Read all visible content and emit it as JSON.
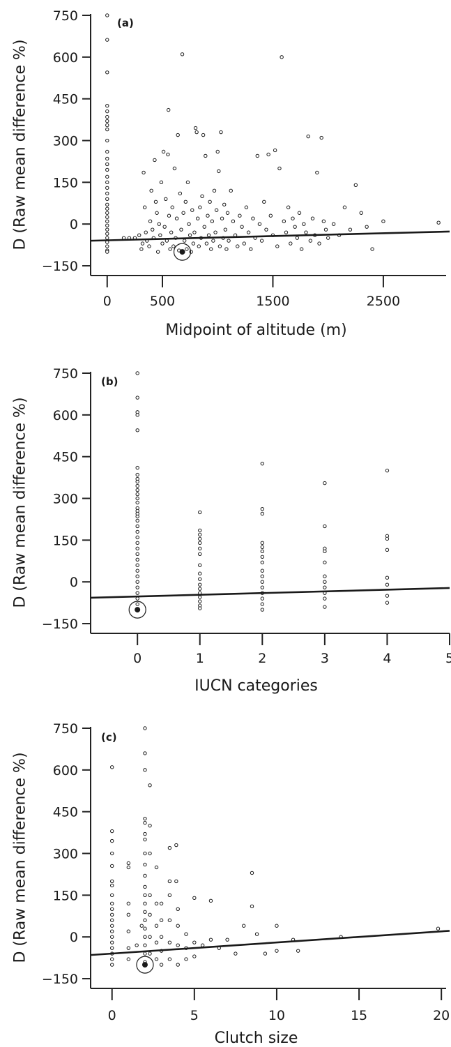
{
  "chart_data": [
    {
      "type": "scatter",
      "panel_label": "(a)",
      "xlabel": "Midpoint of altitude (m)",
      "ylabel": "D (Raw mean difference %)",
      "xlim": [
        -150,
        3100
      ],
      "ylim": [
        -185,
        755
      ],
      "xticks": [
        0,
        500,
        1500,
        2500
      ],
      "yticks": [
        -150,
        0,
        150,
        300,
        450,
        600,
        750
      ],
      "fit_line": {
        "x": [
          -150,
          3100
        ],
        "y": [
          -60,
          -27
        ]
      },
      "highlight": {
        "x": 680,
        "y": -100
      },
      "points": [
        [
          0,
          750
        ],
        [
          0,
          662
        ],
        [
          0,
          545
        ],
        [
          0,
          425
        ],
        [
          0,
          405
        ],
        [
          0,
          385
        ],
        [
          0,
          370
        ],
        [
          0,
          355
        ],
        [
          0,
          340
        ],
        [
          0,
          300
        ],
        [
          0,
          260
        ],
        [
          0,
          235
        ],
        [
          0,
          215
        ],
        [
          0,
          195
        ],
        [
          0,
          170
        ],
        [
          0,
          150
        ],
        [
          0,
          130
        ],
        [
          0,
          110
        ],
        [
          0,
          90
        ],
        [
          0,
          70
        ],
        [
          0,
          55
        ],
        [
          0,
          40
        ],
        [
          0,
          25
        ],
        [
          0,
          10
        ],
        [
          0,
          -5
        ],
        [
          0,
          -20
        ],
        [
          0,
          -35
        ],
        [
          0,
          -50
        ],
        [
          0,
          -65
        ],
        [
          0,
          -80
        ],
        [
          0,
          -95
        ],
        [
          0,
          -100
        ],
        [
          150,
          -50
        ],
        [
          200,
          -50
        ],
        [
          250,
          -50
        ],
        [
          290,
          -40
        ],
        [
          310,
          -90
        ],
        [
          320,
          -70
        ],
        [
          330,
          185
        ],
        [
          340,
          60
        ],
        [
          350,
          -30
        ],
        [
          360,
          -60
        ],
        [
          380,
          -80
        ],
        [
          390,
          10
        ],
        [
          400,
          120
        ],
        [
          410,
          -20
        ],
        [
          420,
          -50
        ],
        [
          430,
          230
        ],
        [
          440,
          80
        ],
        [
          450,
          40
        ],
        [
          460,
          -100
        ],
        [
          470,
          0
        ],
        [
          480,
          -40
        ],
        [
          490,
          150
        ],
        [
          500,
          -70
        ],
        [
          510,
          260
        ],
        [
          520,
          -10
        ],
        [
          530,
          90
        ],
        [
          540,
          -60
        ],
        [
          550,
          250
        ],
        [
          555,
          410
        ],
        [
          560,
          30
        ],
        [
          570,
          -90
        ],
        [
          580,
          -30
        ],
        [
          590,
          60
        ],
        [
          600,
          -80
        ],
        [
          610,
          200
        ],
        [
          620,
          -50
        ],
        [
          630,
          20
        ],
        [
          640,
          320
        ],
        [
          650,
          -95
        ],
        [
          660,
          110
        ],
        [
          670,
          -20
        ],
        [
          680,
          610
        ],
        [
          690,
          40
        ],
        [
          700,
          -60
        ],
        [
          710,
          80
        ],
        [
          720,
          -90
        ],
        [
          730,
          150
        ],
        [
          740,
          0
        ],
        [
          750,
          -40
        ],
        [
          760,
          -100
        ],
        [
          770,
          50
        ],
        [
          780,
          -70
        ],
        [
          790,
          -30
        ],
        [
          800,
          345
        ],
        [
          810,
          330
        ],
        [
          820,
          20
        ],
        [
          830,
          -80
        ],
        [
          840,
          60
        ],
        [
          850,
          -50
        ],
        [
          860,
          100
        ],
        [
          870,
          320
        ],
        [
          880,
          -10
        ],
        [
          890,
          245
        ],
        [
          900,
          -70
        ],
        [
          910,
          30
        ],
        [
          920,
          -40
        ],
        [
          930,
          80
        ],
        [
          940,
          -90
        ],
        [
          950,
          10
        ],
        [
          960,
          -60
        ],
        [
          970,
          120
        ],
        [
          980,
          -30
        ],
        [
          990,
          50
        ],
        [
          1000,
          260
        ],
        [
          1010,
          190
        ],
        [
          1020,
          -80
        ],
        [
          1030,
          330
        ],
        [
          1040,
          20
        ],
        [
          1050,
          -50
        ],
        [
          1060,
          70
        ],
        [
          1070,
          -20
        ],
        [
          1080,
          -90
        ],
        [
          1090,
          40
        ],
        [
          1100,
          -60
        ],
        [
          1120,
          120
        ],
        [
          1140,
          10
        ],
        [
          1160,
          -40
        ],
        [
          1180,
          -80
        ],
        [
          1200,
          30
        ],
        [
          1220,
          -10
        ],
        [
          1240,
          -70
        ],
        [
          1260,
          60
        ],
        [
          1280,
          -30
        ],
        [
          1300,
          -90
        ],
        [
          1320,
          20
        ],
        [
          1340,
          -50
        ],
        [
          1360,
          245
        ],
        [
          1380,
          0
        ],
        [
          1400,
          -60
        ],
        [
          1420,
          80
        ],
        [
          1440,
          -20
        ],
        [
          1460,
          250
        ],
        [
          1480,
          30
        ],
        [
          1500,
          -40
        ],
        [
          1520,
          265
        ],
        [
          1540,
          -80
        ],
        [
          1560,
          200
        ],
        [
          1580,
          600
        ],
        [
          1600,
          10
        ],
        [
          1620,
          -30
        ],
        [
          1640,
          60
        ],
        [
          1660,
          -70
        ],
        [
          1680,
          20
        ],
        [
          1700,
          -10
        ],
        [
          1720,
          -50
        ],
        [
          1740,
          40
        ],
        [
          1760,
          -90
        ],
        [
          1780,
          0
        ],
        [
          1800,
          -30
        ],
        [
          1820,
          315
        ],
        [
          1840,
          -60
        ],
        [
          1860,
          20
        ],
        [
          1880,
          -40
        ],
        [
          1900,
          185
        ],
        [
          1920,
          -70
        ],
        [
          1940,
          310
        ],
        [
          1960,
          10
        ],
        [
          1980,
          -20
        ],
        [
          2000,
          -50
        ],
        [
          2050,
          0
        ],
        [
          2100,
          -40
        ],
        [
          2150,
          60
        ],
        [
          2200,
          -20
        ],
        [
          2250,
          140
        ],
        [
          2300,
          40
        ],
        [
          2350,
          -10
        ],
        [
          2400,
          -90
        ],
        [
          2500,
          10
        ],
        [
          3000,
          5
        ]
      ]
    },
    {
      "type": "scatter",
      "panel_label": "(b)",
      "xlabel": "IUCN categories",
      "ylabel": "D (Raw mean difference %)",
      "xlim": [
        -0.75,
        5
      ],
      "ylim": [
        -185,
        755
      ],
      "xticks": [
        0,
        1,
        2,
        3,
        4,
        5
      ],
      "yticks": [
        -150,
        0,
        150,
        300,
        450,
        600,
        750
      ],
      "fit_line": {
        "x": [
          -0.75,
          5
        ],
        "y": [
          -57,
          -22
        ]
      },
      "highlight": {
        "x": 0,
        "y": -100
      },
      "points": [
        [
          0,
          750
        ],
        [
          0,
          662
        ],
        [
          0,
          610
        ],
        [
          0,
          600
        ],
        [
          0,
          545
        ],
        [
          0,
          410
        ],
        [
          0,
          385
        ],
        [
          0,
          370
        ],
        [
          0,
          360
        ],
        [
          0,
          345
        ],
        [
          0,
          330
        ],
        [
          0,
          315
        ],
        [
          0,
          300
        ],
        [
          0,
          285
        ],
        [
          0,
          265
        ],
        [
          0,
          255
        ],
        [
          0,
          245
        ],
        [
          0,
          235
        ],
        [
          0,
          220
        ],
        [
          0,
          200
        ],
        [
          0,
          180
        ],
        [
          0,
          160
        ],
        [
          0,
          140
        ],
        [
          0,
          120
        ],
        [
          0,
          100
        ],
        [
          0,
          80
        ],
        [
          0,
          60
        ],
        [
          0,
          40
        ],
        [
          0,
          20
        ],
        [
          0,
          0
        ],
        [
          0,
          -20
        ],
        [
          0,
          -40
        ],
        [
          0,
          -60
        ],
        [
          0,
          -80
        ],
        [
          0,
          -100
        ],
        [
          1,
          250
        ],
        [
          1,
          185
        ],
        [
          1,
          170
        ],
        [
          1,
          155
        ],
        [
          1,
          140
        ],
        [
          1,
          120
        ],
        [
          1,
          100
        ],
        [
          1,
          60
        ],
        [
          1,
          30
        ],
        [
          1,
          10
        ],
        [
          1,
          -10
        ],
        [
          1,
          -25
        ],
        [
          1,
          -40
        ],
        [
          1,
          -55
        ],
        [
          1,
          -70
        ],
        [
          1,
          -85
        ],
        [
          1,
          -95
        ],
        [
          2,
          425
        ],
        [
          2,
          262
        ],
        [
          2,
          245
        ],
        [
          2,
          140
        ],
        [
          2,
          125
        ],
        [
          2,
          110
        ],
        [
          2,
          90
        ],
        [
          2,
          70
        ],
        [
          2,
          40
        ],
        [
          2,
          20
        ],
        [
          2,
          0
        ],
        [
          2,
          -20
        ],
        [
          2,
          -40
        ],
        [
          2,
          -60
        ],
        [
          2,
          -80
        ],
        [
          2,
          -100
        ],
        [
          3,
          355
        ],
        [
          3,
          200
        ],
        [
          3,
          120
        ],
        [
          3,
          110
        ],
        [
          3,
          70
        ],
        [
          3,
          20
        ],
        [
          3,
          0
        ],
        [
          3,
          -20
        ],
        [
          3,
          -40
        ],
        [
          3,
          -60
        ],
        [
          3,
          -90
        ],
        [
          4,
          400
        ],
        [
          4,
          165
        ],
        [
          4,
          155
        ],
        [
          4,
          115
        ],
        [
          4,
          15
        ],
        [
          4,
          -10
        ],
        [
          4,
          -50
        ],
        [
          4,
          -75
        ]
      ]
    },
    {
      "type": "scatter",
      "panel_label": "(c)",
      "xlabel": "Clutch size",
      "ylabel": "D (Raw mean difference %)",
      "xlim": [
        -1.3,
        20.5
      ],
      "ylim": [
        -185,
        755
      ],
      "xticks": [
        0,
        5,
        10,
        15,
        20
      ],
      "yticks": [
        -150,
        0,
        150,
        300,
        450,
        600,
        750
      ],
      "fit_line": {
        "x": [
          -1.3,
          20.5
        ],
        "y": [
          -65,
          22
        ]
      },
      "highlight": {
        "x": 2,
        "y": -100
      },
      "points": [
        [
          0,
          610
        ],
        [
          0,
          380
        ],
        [
          0,
          345
        ],
        [
          0,
          300
        ],
        [
          0,
          255
        ],
        [
          0,
          200
        ],
        [
          0,
          185
        ],
        [
          0,
          150
        ],
        [
          0,
          120
        ],
        [
          0,
          100
        ],
        [
          0,
          80
        ],
        [
          0,
          60
        ],
        [
          0,
          40
        ],
        [
          0,
          20
        ],
        [
          0,
          0
        ],
        [
          0,
          -20
        ],
        [
          0,
          -40
        ],
        [
          0,
          -60
        ],
        [
          0,
          -80
        ],
        [
          0,
          -100
        ],
        [
          1,
          265
        ],
        [
          1,
          250
        ],
        [
          1,
          120
        ],
        [
          1,
          80
        ],
        [
          1,
          20
        ],
        [
          1,
          -40
        ],
        [
          1,
          -80
        ],
        [
          1.5,
          -30
        ],
        [
          1.8,
          40
        ],
        [
          2,
          750
        ],
        [
          2,
          660
        ],
        [
          2,
          600
        ],
        [
          2,
          425
        ],
        [
          2,
          410
        ],
        [
          2,
          370
        ],
        [
          2,
          350
        ],
        [
          2,
          300
        ],
        [
          2,
          260
        ],
        [
          2,
          220
        ],
        [
          2,
          180
        ],
        [
          2,
          150
        ],
        [
          2,
          120
        ],
        [
          2,
          90
        ],
        [
          2,
          60
        ],
        [
          2,
          30
        ],
        [
          2,
          0
        ],
        [
          2,
          -30
        ],
        [
          2,
          -60
        ],
        [
          2,
          -90
        ],
        [
          2.3,
          545
        ],
        [
          2.3,
          400
        ],
        [
          2.3,
          300
        ],
        [
          2.3,
          150
        ],
        [
          2.3,
          80
        ],
        [
          2.3,
          0
        ],
        [
          2.3,
          -60
        ],
        [
          2.7,
          250
        ],
        [
          2.7,
          120
        ],
        [
          2.7,
          40
        ],
        [
          2.7,
          -20
        ],
        [
          2.7,
          -80
        ],
        [
          3,
          120
        ],
        [
          3,
          60
        ],
        [
          3,
          0
        ],
        [
          3,
          -50
        ],
        [
          3,
          -100
        ],
        [
          3.5,
          320
        ],
        [
          3.5,
          200
        ],
        [
          3.5,
          150
        ],
        [
          3.5,
          60
        ],
        [
          3.5,
          -20
        ],
        [
          3.5,
          -80
        ],
        [
          3.9,
          330
        ],
        [
          3.9,
          200
        ],
        [
          4,
          100
        ],
        [
          4,
          40
        ],
        [
          4,
          -30
        ],
        [
          4,
          -100
        ],
        [
          4.5,
          10
        ],
        [
          4.5,
          -40
        ],
        [
          4.5,
          -80
        ],
        [
          5,
          140
        ],
        [
          5,
          -20
        ],
        [
          5,
          -70
        ],
        [
          5.5,
          -30
        ],
        [
          6,
          130
        ],
        [
          6,
          -10
        ],
        [
          6.5,
          -40
        ],
        [
          7,
          -10
        ],
        [
          7.5,
          -60
        ],
        [
          8,
          40
        ],
        [
          8.5,
          230
        ],
        [
          8.5,
          110
        ],
        [
          8.8,
          10
        ],
        [
          9.3,
          -60
        ],
        [
          10,
          40
        ],
        [
          10,
          -50
        ],
        [
          11,
          -10
        ],
        [
          11.3,
          -50
        ],
        [
          13.9,
          0
        ],
        [
          19.8,
          30
        ]
      ]
    }
  ]
}
